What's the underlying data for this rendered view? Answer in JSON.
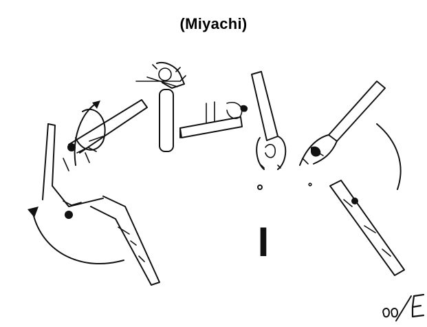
{
  "figure": {
    "title": "(Miyachi)",
    "signature": "ee/E",
    "element_mark": "I",
    "ink_color": "#111111",
    "background_color": "#ffffff"
  }
}
